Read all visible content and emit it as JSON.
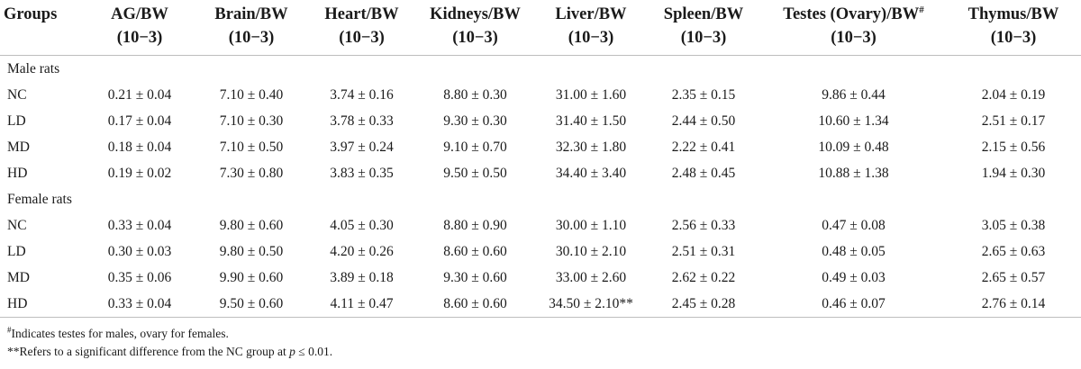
{
  "table": {
    "headers": [
      {
        "label": "Groups",
        "unit": ""
      },
      {
        "label": "AG/BW",
        "unit": "(10−3)"
      },
      {
        "label": "Brain/BW",
        "unit": "(10−3)"
      },
      {
        "label": "Heart/BW",
        "unit": "(10−3)"
      },
      {
        "label": "Kidneys/BW",
        "unit": "(10−3)"
      },
      {
        "label": "Liver/BW",
        "unit": "(10−3)"
      },
      {
        "label": "Spleen/BW",
        "unit": "(10−3)"
      },
      {
        "label": "Testes (Ovary)/BW",
        "unit": "(10−3)",
        "mark": "#"
      },
      {
        "label": "Thymus/BW",
        "unit": "(10−3)"
      }
    ],
    "sections": [
      {
        "name": "Male rats",
        "rows": [
          [
            "NC",
            "0.21 ± 0.04",
            "7.10 ± 0.40",
            "3.74 ± 0.16",
            "8.80 ± 0.30",
            "31.00 ± 1.60",
            "2.35 ± 0.15",
            "9.86 ± 0.44",
            "2.04 ± 0.19"
          ],
          [
            "LD",
            "0.17 ± 0.04",
            "7.10 ± 0.30",
            "3.78 ± 0.33",
            "9.30 ± 0.30",
            "31.40 ± 1.50",
            "2.44 ± 0.50",
            "10.60 ± 1.34",
            "2.51 ± 0.17"
          ],
          [
            "MD",
            "0.18 ± 0.04",
            "7.10 ± 0.50",
            "3.97 ± 0.24",
            "9.10 ± 0.70",
            "32.30 ± 1.80",
            "2.22 ± 0.41",
            "10.09 ± 0.48",
            "2.15 ± 0.56"
          ],
          [
            "HD",
            "0.19 ± 0.02",
            "7.30 ± 0.80",
            "3.83 ± 0.35",
            "9.50 ± 0.50",
            "34.40 ± 3.40",
            "2.48 ± 0.45",
            "10.88 ± 1.38",
            "1.94 ± 0.30"
          ]
        ]
      },
      {
        "name": "Female rats",
        "rows": [
          [
            "NC",
            "0.33 ± 0.04",
            "9.80 ± 0.60",
            "4.05 ± 0.30",
            "8.80 ± 0.90",
            "30.00 ± 1.10",
            "2.56 ± 0.33",
            "0.47 ± 0.08",
            "3.05 ± 0.38"
          ],
          [
            "LD",
            "0.30 ± 0.03",
            "9.80 ± 0.50",
            "4.20 ± 0.26",
            "8.60 ± 0.60",
            "30.10 ± 2.10",
            "2.51 ± 0.31",
            "0.48 ± 0.05",
            "2.65 ± 0.63"
          ],
          [
            "MD",
            "0.35 ± 0.06",
            "9.90 ± 0.60",
            "3.89 ± 0.18",
            "9.30 ± 0.60",
            "33.00 ± 2.60",
            "2.62 ± 0.22",
            "0.49 ± 0.03",
            "2.65 ± 0.57"
          ],
          [
            "HD",
            "0.33 ± 0.04",
            "9.50 ± 0.60",
            "4.11 ± 0.47",
            "8.60 ± 0.60",
            "34.50 ± 2.10**",
            "2.45 ± 0.28",
            "0.46 ± 0.07",
            "2.76 ± 0.14"
          ]
        ]
      }
    ]
  },
  "footnotes": {
    "note1_mark": "#",
    "note1_text": "Indicates testes for males, ovary for females.",
    "note2_text_a": "**Refers to a significant difference from the NC group at ",
    "note2_var": "p",
    "note2_text_b": " ≤ 0.01."
  }
}
